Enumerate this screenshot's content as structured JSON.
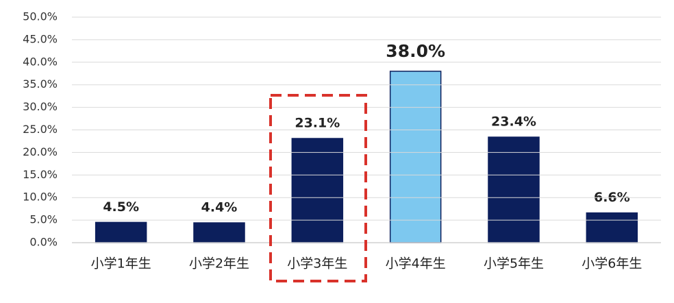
{
  "chart_data": {
    "type": "bar",
    "categories": [
      "小学1年生",
      "小学2年生",
      "小学3年生",
      "小学4年生",
      "小学5年生",
      "小学6年生"
    ],
    "values": [
      4.5,
      4.4,
      23.1,
      38.0,
      23.4,
      6.6
    ],
    "value_labels": [
      "4.5%",
      "4.4%",
      "23.1%",
      "38.0%",
      "23.4%",
      "6.6%"
    ],
    "colors": [
      "#0c1f5c",
      "#0c1f5c",
      "#0c1f5c",
      "#7dc8ef",
      "#0c1f5c",
      "#0c1f5c"
    ],
    "ylim": [
      0,
      50
    ],
    "yticks": [
      {
        "value": 0,
        "label": "0.0%"
      },
      {
        "value": 5,
        "label": "5.0%"
      },
      {
        "value": 10,
        "label": "10.0%"
      },
      {
        "value": 15,
        "label": "15.0%"
      },
      {
        "value": 20,
        "label": "20.0%"
      },
      {
        "value": 25,
        "label": "25.0%"
      },
      {
        "value": 30,
        "label": "30.0%"
      },
      {
        "value": 35,
        "label": "35.0%"
      },
      {
        "value": 40,
        "label": "40.0%"
      },
      {
        "value": 45,
        "label": "45.0%"
      },
      {
        "value": 50,
        "label": "50.0%"
      }
    ],
    "grid": true
  }
}
